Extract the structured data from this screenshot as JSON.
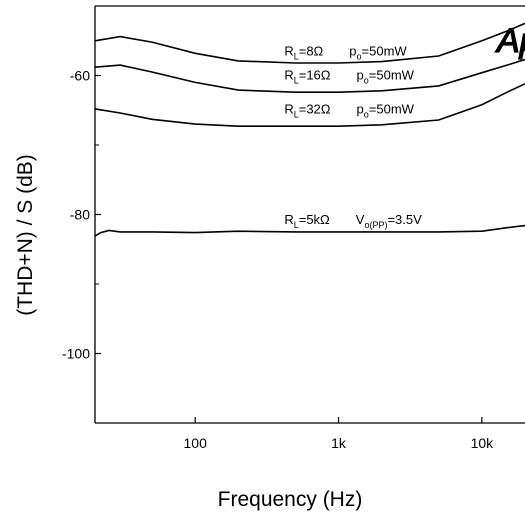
{
  "chart_data": {
    "type": "line",
    "title": "",
    "xlabel": "Frequency (Hz)",
    "ylabel": "(THD+N) / S (dB)",
    "x_scale": "log",
    "xlim": [
      20,
      20000
    ],
    "ylim": [
      -110,
      -50
    ],
    "x_ticks": [
      {
        "value": 100,
        "label": "100"
      },
      {
        "value": 1000,
        "label": "1k"
      },
      {
        "value": 10000,
        "label": "10k"
      }
    ],
    "y_ticks": [
      {
        "value": -60,
        "label": "-60"
      },
      {
        "value": -80,
        "label": "-80"
      },
      {
        "value": -100,
        "label": "-100"
      }
    ],
    "grid": false,
    "logo_text": "Ap",
    "series": [
      {
        "x": [
          20,
          30,
          50,
          100,
          200,
          500,
          1000,
          2000,
          5000,
          10000,
          15000,
          20000
        ],
        "y": [
          -55.0,
          -54.4,
          -55.2,
          -56.8,
          -57.9,
          -58.2,
          -58.2,
          -58.0,
          -57.2,
          -55.0,
          -53.6,
          -52.5
        ],
        "label": {
          "main": "R",
          "sub": "L",
          "value": "=8Ω",
          "cond_main": "p",
          "cond_sub": "o",
          "cond_value": "=50mW"
        },
        "label_at": {
          "x": 200,
          "y": -57.1
        }
      },
      {
        "x": [
          20,
          30,
          50,
          100,
          200,
          500,
          1000,
          2000,
          5000,
          10000,
          15000,
          20000
        ],
        "y": [
          -58.8,
          -58.5,
          -59.5,
          -61.0,
          -62.1,
          -62.4,
          -62.4,
          -62.2,
          -61.5,
          -59.6,
          -58.5,
          -57.7
        ],
        "label": {
          "main": "R",
          "sub": "L",
          "value": "=16Ω",
          "cond_main": "p",
          "cond_sub": "o",
          "cond_value": "=50mW"
        },
        "label_at": {
          "x": 200,
          "y": -60.6
        }
      },
      {
        "x": [
          20,
          30,
          50,
          100,
          200,
          500,
          1000,
          2000,
          5000,
          10000,
          15000,
          20000
        ],
        "y": [
          -64.8,
          -65.4,
          -66.3,
          -67.0,
          -67.3,
          -67.3,
          -67.3,
          -67.1,
          -66.4,
          -64.2,
          -62.4,
          -61.2
        ],
        "label": {
          "main": "R",
          "sub": "L",
          "value": "=32Ω",
          "cond_main": "p",
          "cond_sub": "o",
          "cond_value": "=50mW"
        },
        "label_at": {
          "x": 200,
          "y": -65.5
        }
      },
      {
        "x": [
          20,
          22,
          25,
          30,
          50,
          100,
          200,
          500,
          1000,
          2000,
          5000,
          10000,
          15000,
          20000
        ],
        "y": [
          -83.1,
          -82.6,
          -82.3,
          -82.5,
          -82.5,
          -82.6,
          -82.4,
          -82.5,
          -82.5,
          -82.5,
          -82.5,
          -82.4,
          -81.9,
          -81.6
        ],
        "label": {
          "main": "R",
          "sub": "L",
          "value": "=5kΩ",
          "cond_main": "V",
          "cond_sub": "o(PP)",
          "cond_value": "=3.5V"
        },
        "label_at": {
          "x": 200,
          "y": -81.4
        }
      }
    ]
  }
}
